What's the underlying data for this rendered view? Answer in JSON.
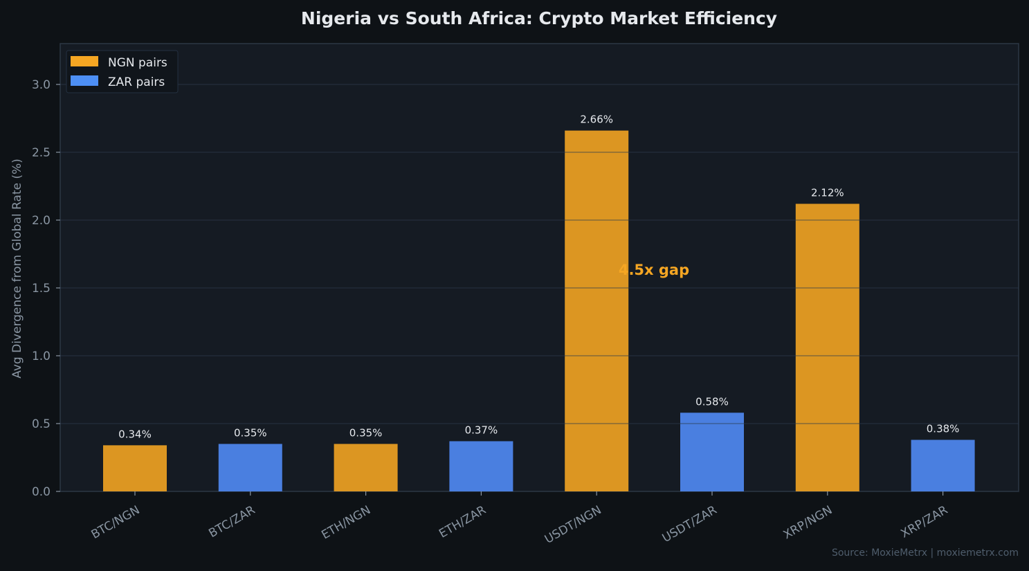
{
  "chart_data": {
    "type": "bar",
    "title": "Nigeria vs South Africa: Crypto Market Efficiency",
    "xlabel": "",
    "ylabel": "Avg Divergence from Global Rate (%)",
    "ylim": [
      0,
      3.3
    ],
    "yticks": [
      "0.0",
      "0.5",
      "1.0",
      "1.5",
      "2.0",
      "2.5",
      "3.0"
    ],
    "grid": true,
    "legend_position": "top-left",
    "categories": [
      "BTC/NGN",
      "BTC/ZAR",
      "ETH/NGN",
      "ETH/ZAR",
      "USDT/NGN",
      "USDT/ZAR",
      "XRP/NGN",
      "XRP/ZAR"
    ],
    "values": [
      0.34,
      0.35,
      0.35,
      0.37,
      2.66,
      0.58,
      2.12,
      0.38
    ],
    "data_labels": [
      "0.34%",
      "0.35%",
      "0.35%",
      "0.37%",
      "2.66%",
      "0.58%",
      "2.12%",
      "0.38%"
    ],
    "groups": [
      "NGN",
      "ZAR",
      "NGN",
      "ZAR",
      "NGN",
      "ZAR",
      "NGN",
      "ZAR"
    ],
    "legend": [
      {
        "key": "NGN",
        "label": "NGN pairs",
        "color": "#f5a623"
      },
      {
        "key": "ZAR",
        "label": "ZAR pairs",
        "color": "#4d8ff5"
      }
    ],
    "annotation": {
      "text": "4.5x gap",
      "color": "#f5a623",
      "y": 1.62
    },
    "source": "Source: MoxieMetrx | moxiemetrx.com"
  },
  "colors": {
    "background": "#0e1216",
    "plot_background": "#151b23",
    "text": "#e6e9ed",
    "axis_text": "#8a96a3"
  }
}
